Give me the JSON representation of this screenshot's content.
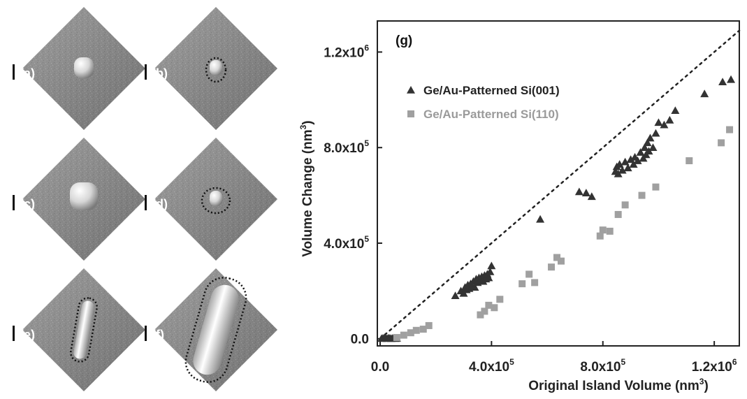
{
  "panels": [
    {
      "id": "a",
      "label": "(a)",
      "feature": "dome",
      "outlined": false
    },
    {
      "id": "b",
      "label": "(b)",
      "feature": "small-dome",
      "outlined": true
    },
    {
      "id": "c",
      "label": "(c)",
      "feature": "large-dome",
      "outlined": false
    },
    {
      "id": "d",
      "label": "(d)",
      "feature": "small-dome",
      "outlined": true
    },
    {
      "id": "e",
      "label": "(e)",
      "feature": "rod",
      "outlined": true
    },
    {
      "id": "f",
      "label": "(f)",
      "feature": "large-rod",
      "outlined": true
    }
  ],
  "colors": {
    "series_001": "#333333",
    "series_110": "#a0a0a0",
    "reference_line": "#222222",
    "axis": "#222222"
  },
  "chart_data": {
    "type": "scatter",
    "panel_label": "(g)",
    "xlabel": "Original Island Volume (nm",
    "xlabel_sup": "3",
    "xlabel_suffix": ")",
    "ylabel": "Volume Change (nm",
    "ylabel_sup": "3",
    "ylabel_suffix": ")",
    "xlim": [
      -10000,
      1290000
    ],
    "ylim": [
      -30000,
      1330000
    ],
    "x_ticks": [
      {
        "value": 0,
        "base": "0.0",
        "exp": ""
      },
      {
        "value": 400000,
        "base": "4.0x10",
        "exp": "5"
      },
      {
        "value": 800000,
        "base": "8.0x10",
        "exp": "5"
      },
      {
        "value": 1200000,
        "base": "1.2x10",
        "exp": "6"
      }
    ],
    "y_ticks": [
      {
        "value": 0,
        "base": "0.0",
        "exp": ""
      },
      {
        "value": 400000,
        "base": "4.0x10",
        "exp": "5"
      },
      {
        "value": 800000,
        "base": "8.0x10",
        "exp": "5"
      },
      {
        "value": 1200000,
        "base": "1.2x10",
        "exp": "6"
      }
    ],
    "grid": false,
    "legend_position": "upper-left",
    "reference_line": {
      "style": "dotted",
      "x": [
        0,
        1290000
      ],
      "y": [
        0,
        1290000
      ]
    },
    "series": [
      {
        "name": "Ge/Au-Patterned Si(001)",
        "marker": "triangle",
        "x": [
          5000,
          10000,
          15000,
          20000,
          25000,
          30000,
          35000,
          40000,
          45000,
          50000,
          55000,
          60000,
          270000,
          290000,
          300000,
          305000,
          310000,
          315000,
          320000,
          325000,
          330000,
          335000,
          340000,
          345000,
          350000,
          355000,
          360000,
          365000,
          370000,
          375000,
          380000,
          385000,
          390000,
          395000,
          400000,
          575000,
          715000,
          740000,
          760000,
          845000,
          850000,
          855000,
          860000,
          870000,
          880000,
          890000,
          900000,
          910000,
          915000,
          925000,
          935000,
          945000,
          950000,
          955000,
          960000,
          965000,
          970000,
          980000,
          990000,
          1000000,
          1020000,
          1040000,
          1060000,
          1165000,
          1230000,
          1260000
        ],
        "y": [
          1000,
          2000,
          3000,
          2000,
          1000,
          3000,
          2000,
          1000,
          2000,
          3000,
          1000,
          2000,
          180000,
          200000,
          190000,
          215000,
          205000,
          225000,
          210000,
          230000,
          220000,
          240000,
          215000,
          250000,
          235000,
          255000,
          245000,
          260000,
          240000,
          265000,
          250000,
          270000,
          255000,
          280000,
          305000,
          500000,
          615000,
          610000,
          595000,
          700000,
          720000,
          690000,
          730000,
          705000,
          740000,
          715000,
          750000,
          730000,
          760000,
          745000,
          780000,
          755000,
          800000,
          770000,
          820000,
          785000,
          840000,
          800000,
          860000,
          905000,
          895000,
          915000,
          955000,
          1025000,
          1075000,
          1085000
        ]
      },
      {
        "name": "Ge/Au-Patterned Si(110)",
        "marker": "square",
        "x": [
          60000,
          85000,
          110000,
          130000,
          155000,
          175000,
          360000,
          375000,
          390000,
          410000,
          430000,
          510000,
          535000,
          555000,
          615000,
          635000,
          650000,
          790000,
          800000,
          825000,
          855000,
          880000,
          940000,
          990000,
          1110000,
          1225000,
          1255000
        ],
        "y": [
          5000,
          15000,
          25000,
          35000,
          40000,
          55000,
          100000,
          115000,
          140000,
          130000,
          165000,
          230000,
          270000,
          235000,
          300000,
          340000,
          325000,
          430000,
          455000,
          450000,
          520000,
          560000,
          600000,
          635000,
          745000,
          820000,
          875000
        ]
      }
    ]
  }
}
